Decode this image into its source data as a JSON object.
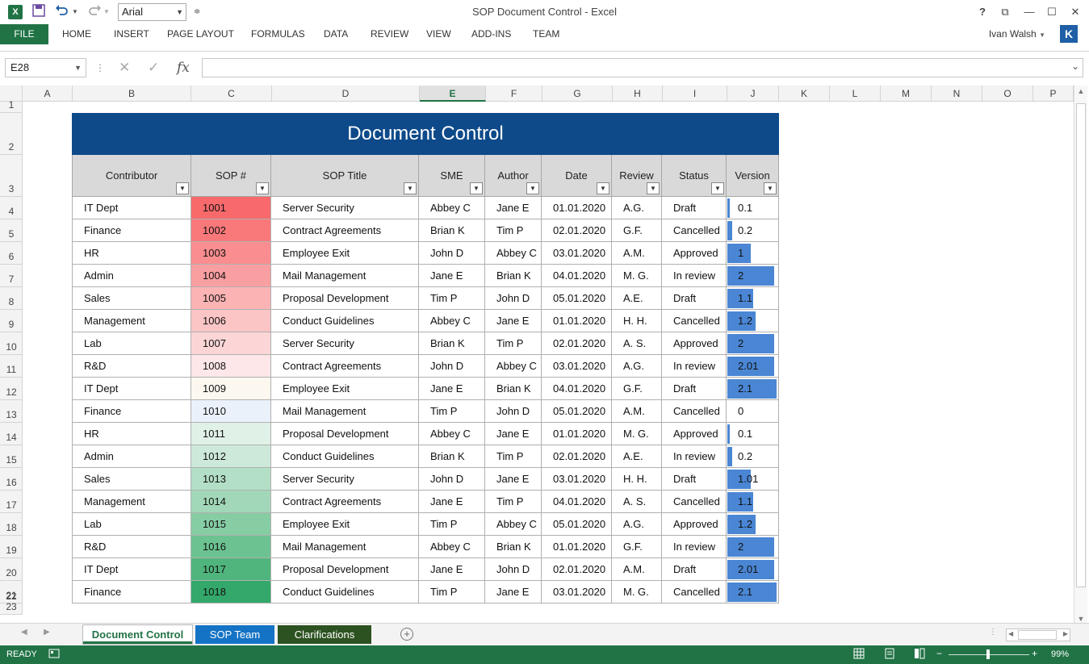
{
  "window": {
    "title": "SOP Document Control - Excel",
    "font_name": "Arial",
    "help": "?",
    "restore": "⧉",
    "minimize": "—",
    "maximize": "☐",
    "close": "✕"
  },
  "ribbon": {
    "file": "FILE",
    "tabs": [
      "HOME",
      "INSERT",
      "PAGE LAYOUT",
      "FORMULAS",
      "DATA",
      "REVIEW",
      "VIEW",
      "ADD-INS",
      "TEAM"
    ],
    "user": "Ivan Walsh",
    "avatar_letter": "K"
  },
  "formula_bar": {
    "name_box": "E28",
    "cancel": "✕",
    "enter": "✓",
    "fx": "fx",
    "value": ""
  },
  "grid": {
    "columns": [
      "A",
      "B",
      "C",
      "D",
      "E",
      "F",
      "G",
      "H",
      "I",
      "J",
      "K",
      "L",
      "M",
      "N",
      "O",
      "P"
    ],
    "selected_column": "E",
    "rows": [
      "1",
      "2",
      "3",
      "4",
      "5",
      "6",
      "7",
      "8",
      "9",
      "10",
      "11",
      "12",
      "13",
      "14",
      "15",
      "16",
      "17",
      "18",
      "19",
      "20",
      "21",
      "22",
      "23"
    ]
  },
  "table": {
    "title": "Document Control",
    "headers": [
      "Contributor",
      "SOP #",
      "SOP Title",
      "SME",
      "Author",
      "Date",
      "Review",
      "Status",
      "Version"
    ],
    "filter_glyph": "▼",
    "rows": [
      {
        "contributor": "IT Dept",
        "sop": "1001",
        "title": "Server Security",
        "sme": "Abbey C",
        "author": "Jane E",
        "date": "01.01.2020",
        "review": "A.G.",
        "status": "Draft",
        "version": "0.1",
        "version_num": 0.1,
        "sop_color": "#f8696b"
      },
      {
        "contributor": "Finance",
        "sop": "1002",
        "title": "Contract Agreements",
        "sme": "Brian K",
        "author": "Tim P",
        "date": "02.01.2020",
        "review": "G.F.",
        "status": "Cancelled",
        "version": "0.2",
        "version_num": 0.2,
        "sop_color": "#f9787a"
      },
      {
        "contributor": "HR",
        "sop": "1003",
        "title": "Employee Exit",
        "sme": "John D",
        "author": "Abbey C",
        "date": "03.01.2020",
        "review": "A.M.",
        "status": "Approved",
        "version": "1",
        "version_num": 1,
        "sop_color": "#fa8d8f"
      },
      {
        "contributor": "Admin",
        "sop": "1004",
        "title": "Mail Management",
        "sme": "Jane E",
        "author": "Brian K",
        "date": "04.01.2020",
        "review": "M. G.",
        "status": "In review",
        "version": "2",
        "version_num": 2,
        "sop_color": "#fa9fa1"
      },
      {
        "contributor": "Sales",
        "sop": "1005",
        "title": "Proposal Development",
        "sme": "Tim P",
        "author": "John D",
        "date": "05.01.2020",
        "review": "A.E.",
        "status": "Draft",
        "version": "1.1",
        "version_num": 1.1,
        "sop_color": "#fbb3b4"
      },
      {
        "contributor": "Management",
        "sop": "1006",
        "title": "Conduct Guidelines",
        "sme": "Abbey C",
        "author": "Jane E",
        "date": "01.01.2020",
        "review": "H. H.",
        "status": "Cancelled",
        "version": "1.2",
        "version_num": 1.2,
        "sop_color": "#fbc4c5"
      },
      {
        "contributor": "Lab",
        "sop": "1007",
        "title": "Server Security",
        "sme": "Brian K",
        "author": "Tim P",
        "date": "02.01.2020",
        "review": "A. S.",
        "status": "Approved",
        "version": "2",
        "version_num": 2,
        "sop_color": "#fcd6d7"
      },
      {
        "contributor": "R&D",
        "sop": "1008",
        "title": "Contract Agreements",
        "sme": "John D",
        "author": "Abbey C",
        "date": "03.01.2020",
        "review": "A.G.",
        "status": "In review",
        "version": "2.01",
        "version_num": 2.01,
        "sop_color": "#fde7e8"
      },
      {
        "contributor": "IT Dept",
        "sop": "1009",
        "title": "Employee Exit",
        "sme": "Jane E",
        "author": "Brian K",
        "date": "04.01.2020",
        "review": "G.F.",
        "status": "Draft",
        "version": "2.1",
        "version_num": 2.1,
        "sop_color": "#fdf8ef"
      },
      {
        "contributor": "Finance",
        "sop": "1010",
        "title": "Mail Management",
        "sme": "Tim P",
        "author": "John D",
        "date": "05.01.2020",
        "review": "A.M.",
        "status": "Cancelled",
        "version": "0",
        "version_num": 0,
        "sop_color": "#eaf1fa"
      },
      {
        "contributor": "HR",
        "sop": "1011",
        "title": "Proposal Development",
        "sme": "Abbey C",
        "author": "Jane E",
        "date": "01.01.2020",
        "review": "M. G.",
        "status": "Approved",
        "version": "0.1",
        "version_num": 0.1,
        "sop_color": "#e0f1e8"
      },
      {
        "contributor": "Admin",
        "sop": "1012",
        "title": "Conduct Guidelines",
        "sme": "Brian K",
        "author": "Tim P",
        "date": "02.01.2020",
        "review": "A.E.",
        "status": "In review",
        "version": "0.2",
        "version_num": 0.2,
        "sop_color": "#cde9da"
      },
      {
        "contributor": "Sales",
        "sop": "1013",
        "title": "Server Security",
        "sme": "John D",
        "author": "Jane E",
        "date": "03.01.2020",
        "review": "H. H.",
        "status": "Draft",
        "version": "1.01",
        "version_num": 1.01,
        "sop_color": "#b3dfc6"
      },
      {
        "contributor": "Management",
        "sop": "1014",
        "title": "Contract Agreements",
        "sme": "Jane E",
        "author": "Tim P",
        "date": "04.01.2020",
        "review": "A. S.",
        "status": "Cancelled",
        "version": "1.1",
        "version_num": 1.1,
        "sop_color": "#a2d8b9"
      },
      {
        "contributor": "Lab",
        "sop": "1015",
        "title": "Employee Exit",
        "sme": "Tim P",
        "author": "Abbey C",
        "date": "05.01.2020",
        "review": "A.G.",
        "status": "Approved",
        "version": "1.2",
        "version_num": 1.2,
        "sop_color": "#86cda4"
      },
      {
        "contributor": "R&D",
        "sop": "1016",
        "title": "Mail Management",
        "sme": "Abbey C",
        "author": "Brian K",
        "date": "01.01.2020",
        "review": "G.F.",
        "status": "In review",
        "version": "2",
        "version_num": 2,
        "sop_color": "#6cc290"
      },
      {
        "contributor": "IT Dept",
        "sop": "1017",
        "title": "Proposal Development",
        "sme": "Jane E",
        "author": "John D",
        "date": "02.01.2020",
        "review": "A.M.",
        "status": "Draft",
        "version": "2.01",
        "version_num": 2.01,
        "sop_color": "#4fb57c"
      },
      {
        "contributor": "Finance",
        "sop": "1018",
        "title": "Conduct Guidelines",
        "sme": "Tim P",
        "author": "Jane E",
        "date": "03.01.2020",
        "review": "M. G.",
        "status": "Cancelled",
        "version": "2.1",
        "version_num": 2.1,
        "sop_color": "#33a86a"
      }
    ]
  },
  "sheets": {
    "tabs": [
      "Document Control",
      "SOP Team",
      "Clarifications"
    ],
    "active": "Document Control",
    "add": "+"
  },
  "status": {
    "ready": "READY",
    "zoom": "99%",
    "zoom_minus": "−",
    "zoom_plus": "+"
  }
}
